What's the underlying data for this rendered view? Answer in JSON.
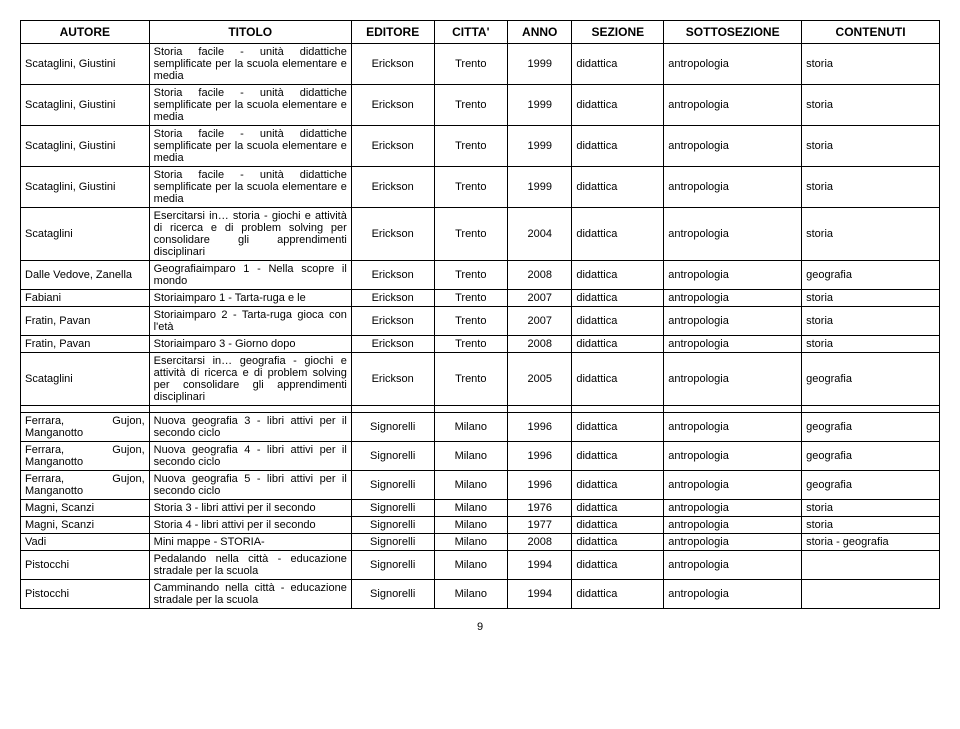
{
  "headers": {
    "autore": "AUTORE",
    "titolo": "TITOLO",
    "editore": "EDITORE",
    "citta": "CITTA'",
    "anno": "ANNO",
    "sezione": "SEZIONE",
    "sottosezione": "SOTTOSEZIONE",
    "contenuti": "CONTENUTI"
  },
  "rows_top": [
    {
      "autore": "Scataglini, Giustini",
      "titolo": "Storia facile - unità didattiche semplificate per la scuola elementare e media",
      "editore": "Erickson",
      "citta": "Trento",
      "anno": "1999",
      "sezione": "didattica",
      "sotto": "antropologia",
      "cont": "storia"
    },
    {
      "autore": "Scataglini, Giustini",
      "titolo": "Storia facile - unità didattiche semplificate per la scuola elementare e media",
      "editore": "Erickson",
      "citta": "Trento",
      "anno": "1999",
      "sezione": "didattica",
      "sotto": "antropologia",
      "cont": "storia"
    },
    {
      "autore": "Scataglini, Giustini",
      "titolo": "Storia facile - unità didattiche semplificate per la scuola elementare e media",
      "editore": "Erickson",
      "citta": "Trento",
      "anno": "1999",
      "sezione": "didattica",
      "sotto": "antropologia",
      "cont": "storia"
    },
    {
      "autore": "Scataglini, Giustini",
      "titolo": "Storia facile - unità didattiche semplificate per la scuola elementare e media",
      "editore": "Erickson",
      "citta": "Trento",
      "anno": "1999",
      "sezione": "didattica",
      "sotto": "antropologia",
      "cont": "storia"
    },
    {
      "autore": "Scataglini",
      "titolo": "Esercitarsi in… storia - giochi e attività di ricerca e di problem solving per consolidare gli apprendimenti disciplinari",
      "editore": "Erickson",
      "citta": "Trento",
      "anno": "2004",
      "sezione": "didattica",
      "sotto": "antropologia",
      "cont": "storia"
    },
    {
      "autore": "Dalle Vedove, Zanella",
      "titolo": "Geografiaimparo 1 - Nella scopre il mondo",
      "editore": "Erickson",
      "citta": "Trento",
      "anno": "2008",
      "sezione": "didattica",
      "sotto": "antropologia",
      "cont": "geografia"
    },
    {
      "autore": "Fabiani",
      "titolo": "Storiaimparo 1 - Tarta-ruga e le",
      "editore": "Erickson",
      "citta": "Trento",
      "anno": "2007",
      "sezione": "didattica",
      "sotto": "antropologia",
      "cont": "storia"
    },
    {
      "autore": "Fratin, Pavan",
      "titolo": "Storiaimparo 2 - Tarta-ruga gioca con l'età",
      "editore": "Erickson",
      "citta": "Trento",
      "anno": "2007",
      "sezione": "didattica",
      "sotto": "antropologia",
      "cont": "storia"
    },
    {
      "autore": "Fratin, Pavan",
      "titolo": "Storiaimparo 3 - Giorno dopo",
      "editore": "Erickson",
      "citta": "Trento",
      "anno": "2008",
      "sezione": "didattica",
      "sotto": "antropologia",
      "cont": "storia"
    },
    {
      "autore": "Scataglini",
      "titolo": "Esercitarsi in… geografia - giochi e attività di ricerca e di problem solving per consolidare gli apprendimenti disciplinari",
      "editore": "Erickson",
      "citta": "Trento",
      "anno": "2005",
      "sezione": "didattica",
      "sotto": "antropologia",
      "cont": "geografia"
    }
  ],
  "rows_bottom": [
    {
      "autore": "Ferrara, Gujon, Manganotto",
      "titolo": "Nuova geografia 3 - libri attivi per il secondo ciclo",
      "editore": "Signorelli",
      "citta": "Milano",
      "anno": "1996",
      "sezione": "didattica",
      "sotto": "antropologia",
      "cont": "geografia"
    },
    {
      "autore": "Ferrara, Gujon, Manganotto",
      "titolo": "Nuova geografia 4 - libri attivi per il secondo ciclo",
      "editore": "Signorelli",
      "citta": "Milano",
      "anno": "1996",
      "sezione": "didattica",
      "sotto": "antropologia",
      "cont": "geografia"
    },
    {
      "autore": "Ferrara, Gujon, Manganotto",
      "titolo": "Nuova geografia 5 - libri attivi per il secondo ciclo",
      "editore": "Signorelli",
      "citta": "Milano",
      "anno": "1996",
      "sezione": "didattica",
      "sotto": "antropologia",
      "cont": "geografia"
    },
    {
      "autore": "Magni, Scanzi",
      "titolo": "Storia 3 - libri attivi per il secondo",
      "editore": "Signorelli",
      "citta": "Milano",
      "anno": "1976",
      "sezione": "didattica",
      "sotto": "antropologia",
      "cont": "storia"
    },
    {
      "autore": "Magni, Scanzi",
      "titolo": "Storia 4 - libri attivi per il secondo",
      "editore": "Signorelli",
      "citta": "Milano",
      "anno": "1977",
      "sezione": "didattica",
      "sotto": "antropologia",
      "cont": "storia"
    },
    {
      "autore": "Vadi",
      "titolo": "Mini mappe - STORIA-",
      "editore": "Signorelli",
      "citta": "Milano",
      "anno": "2008",
      "sezione": "didattica",
      "sotto": "antropologia",
      "cont": "storia - geografia"
    },
    {
      "autore": "Pistocchi",
      "titolo": "Pedalando nella città - educazione stradale per la scuola",
      "editore": "Signorelli",
      "citta": "Milano",
      "anno": "1994",
      "sezione": "didattica",
      "sotto": "antropologia",
      "cont": ""
    },
    {
      "autore": "Pistocchi",
      "titolo": "Camminando nella città - educazione stradale per la scuola",
      "editore": "Signorelli",
      "citta": "Milano",
      "anno": "1994",
      "sezione": "didattica",
      "sotto": "antropologia",
      "cont": ""
    }
  ],
  "page_number": "9"
}
